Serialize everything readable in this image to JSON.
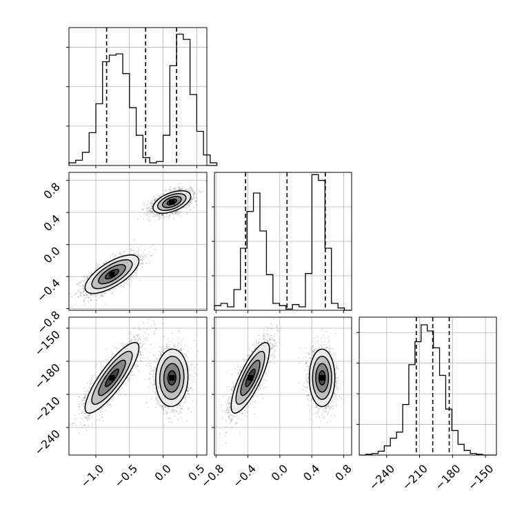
{
  "figure": {
    "title": ""
  },
  "chart_data": [
    {
      "panel": "hist-param-1",
      "type": "histogram",
      "x_range": [
        -1.4,
        0.65
      ],
      "bins_start": -1.4,
      "bin_width": 0.1,
      "counts": [
        0.2,
        0.4,
        1.0,
        2.5,
        4.7,
        7.9,
        8.4,
        8.5,
        7.0,
        4.4,
        2.3,
        0.6,
        0.2,
        0.3,
        2.3,
        7.6,
        10.0,
        9.6,
        5.4,
        2.6,
        0.8,
        0.2
      ],
      "y_max": 10.5,
      "y_tick_values": [
        3.0,
        6.0,
        9.0
      ],
      "quantile_lines": [
        -0.84,
        -0.26,
        0.2
      ],
      "grid": true
    },
    {
      "panel": "hist-param-2",
      "type": "histogram",
      "x_range": [
        -0.82,
        0.9
      ],
      "bins_start": -0.82,
      "bin_width": 0.0815,
      "counts": [
        0.4,
        0.6,
        0.3,
        1.8,
        5.4,
        8.6,
        10.2,
        6.9,
        3.1,
        0.6,
        0.4,
        0.1,
        0.5,
        0.3,
        3.2,
        11.8,
        11.3,
        5.4,
        0.6,
        0.2
      ],
      "y_max": 12.0,
      "y_tick_values": [
        3.0,
        6.0,
        9.0
      ],
      "quantile_lines": [
        -0.43,
        0.09,
        0.57
      ],
      "grid": true
    },
    {
      "panel": "hist-param-3",
      "type": "histogram",
      "x_range": [
        -265,
        -140
      ],
      "bins_start": -259,
      "bin_width": 5.6,
      "counts": [
        0.05,
        0.1,
        0.25,
        0.6,
        1.1,
        1.5,
        3.3,
        5.9,
        7.4,
        8.5,
        8.1,
        7.0,
        5.2,
        3.0,
        1.6,
        0.7,
        0.3,
        0.1,
        0.05
      ],
      "y_max": 9.0,
      "y_tick_values": [
        2.0,
        4.0,
        6.0,
        8.0
      ],
      "quantile_lines": [
        -213,
        -198,
        -183
      ],
      "grid": true
    },
    {
      "panel": "scatter-param-1-vs-param-2",
      "type": "scatter-density",
      "x_range": [
        -1.4,
        0.65
      ],
      "y_range": [
        -0.82,
        0.9
      ],
      "clusters": [
        {
          "center": [
            -0.76,
            -0.37
          ],
          "spread": [
            0.2,
            0.12
          ],
          "corr": 0.7,
          "points": 2300
        },
        {
          "center": [
            0.13,
            0.53
          ],
          "spread": [
            0.14,
            0.07
          ],
          "corr": 0.5,
          "points": 2300
        }
      ],
      "grid": true
    },
    {
      "panel": "scatter-param-1-vs-param-3",
      "type": "scatter-density",
      "x_range": [
        -1.4,
        0.65
      ],
      "y_range": [
        -265,
        -140
      ],
      "clusters": [
        {
          "center": [
            -0.76,
            -195
          ],
          "spread": [
            0.2,
            16
          ],
          "corr": 0.85,
          "points": 2300
        },
        {
          "center": [
            0.13,
            -195
          ],
          "spread": [
            0.12,
            13
          ],
          "corr": 0.05,
          "points": 2300
        }
      ],
      "grid": true
    },
    {
      "panel": "scatter-param-2-vs-param-3",
      "type": "scatter-density",
      "x_range": [
        -0.82,
        0.9
      ],
      "y_range": [
        -265,
        -140
      ],
      "clusters": [
        {
          "center": [
            -0.37,
            -195
          ],
          "spread": [
            0.12,
            16
          ],
          "corr": 0.8,
          "points": 2300
        },
        {
          "center": [
            0.53,
            -195
          ],
          "spread": [
            0.08,
            13
          ],
          "corr": 0.0,
          "points": 2300
        }
      ],
      "grid": true
    }
  ],
  "axes": {
    "param1_ticks": [
      {
        "value": -1.0,
        "label": "−1.0"
      },
      {
        "value": -0.5,
        "label": "−0.5"
      },
      {
        "value": 0.0,
        "label": "0.0"
      },
      {
        "value": 0.5,
        "label": "0.5"
      }
    ],
    "param2_ticks": [
      {
        "value": -0.8,
        "label": "−0.8"
      },
      {
        "value": -0.4,
        "label": "−0.4"
      },
      {
        "value": 0.0,
        "label": "0.0"
      },
      {
        "value": 0.4,
        "label": "0.4"
      },
      {
        "value": 0.8,
        "label": "0.8"
      }
    ],
    "param3_ticks": [
      {
        "value": -240,
        "label": "−240"
      },
      {
        "value": -210,
        "label": "−210"
      },
      {
        "value": -180,
        "label": "−180"
      },
      {
        "value": -150,
        "label": "−150"
      }
    ]
  },
  "colors": {
    "line": "#000000",
    "grid": "#b0b0b0",
    "points": "#000000",
    "background": "#ffffff"
  }
}
